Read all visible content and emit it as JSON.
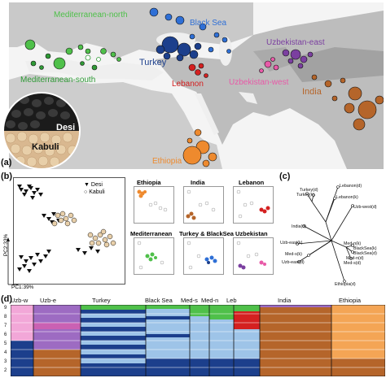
{
  "panels": {
    "a": "(a)",
    "b": "(b)",
    "c": "(c)",
    "d": "(d)"
  },
  "colors": {
    "uzbek_west": "#e85aa8",
    "uzbek_east": "#7b3fa0",
    "turkey": "#1c3f8c",
    "black_sea": "#2e6fd6",
    "lebanon": "#d42020",
    "india": "#b5652a",
    "ethiopia": "#ee8a2e",
    "med_north": "#4fc04a",
    "med_south": "#2f9a36",
    "light_blue": "#9ec4e8",
    "pink": "#f2a7d8",
    "khaki": "#d9c7a0"
  },
  "map": {
    "regions": [
      {
        "key": "med_north",
        "label": "Mediterranean-north",
        "color": "#4fc04a"
      },
      {
        "key": "black_sea",
        "label": "Black Sea",
        "color": "#2e6fd6"
      },
      {
        "key": "uzbek_east",
        "label": "Uzbekistan-east",
        "color": "#7b3fa0"
      },
      {
        "key": "turkey",
        "label": "Turkey",
        "color": "#1c3f8c"
      },
      {
        "key": "med_south",
        "label": "Mediterranean-south",
        "color": "#2f9a36"
      },
      {
        "key": "lebanon",
        "label": "Lebanon",
        "color": "#d42020"
      },
      {
        "key": "uzbek_west",
        "label": "Uzbekistan-west",
        "color": "#e85aa8"
      },
      {
        "key": "india",
        "label": "India",
        "color": "#b5652a"
      },
      {
        "key": "ethiopia",
        "label": "Ethiopia",
        "color": "#ee8a2e"
      }
    ],
    "seed_labels": {
      "desi": "Desi",
      "kabuli": "Kabuli"
    }
  },
  "pca": {
    "legend": [
      {
        "label": "Desi",
        "marker": "triangle"
      },
      {
        "label": "Kabuli",
        "marker": "circle"
      }
    ],
    "xlabel": "PC1:39%",
    "ylabel": "PC2:33%",
    "mini_titles": [
      "Ethiopia",
      "India",
      "Lebanon",
      "Mediterranean",
      "Turkey & BlackSea",
      "Uzbekistan"
    ]
  },
  "tree": {
    "labels": [
      "Lebanon(d)",
      "Turkey(d)",
      "Turkey(k)",
      "Lebanon(k)",
      "Uzb-west(d)",
      "India(d)",
      "Uzb-east(k)",
      "Med-n(k)",
      "BlackSea(k)",
      "BlackSea(d)",
      "Med-s(k)",
      "Med-n(d)",
      "Uzb-east(d)",
      "Med-s(d)",
      "Ethiopia(d)"
    ]
  },
  "admixture": {
    "y_ticks": [
      "2",
      "3",
      "4",
      "5",
      "6",
      "7",
      "8",
      "9"
    ],
    "groups": [
      "Uzb-w",
      "Uzb-e",
      "Turkey",
      "Black Sea",
      "Med-s",
      "Med-n",
      "Leb",
      "India",
      "Ethiopia"
    ]
  }
}
